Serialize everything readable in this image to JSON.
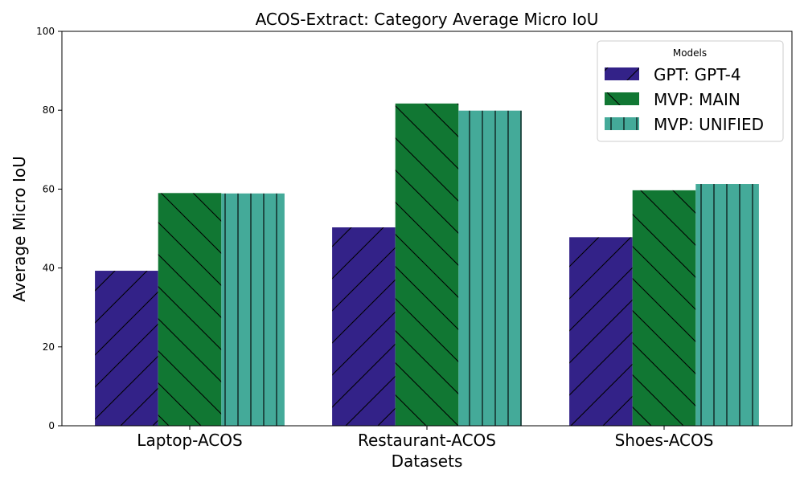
{
  "chart_data": {
    "type": "bar",
    "title": "ACOS-Extract: Category Average Micro IoU",
    "xlabel": "Datasets",
    "ylabel": "Average Micro IoU",
    "ylim": [
      0,
      100
    ],
    "yticks": [
      0,
      20,
      40,
      60,
      80,
      100
    ],
    "categories": [
      "Laptop-ACOS",
      "Restaurant-ACOS",
      "Shoes-ACOS"
    ],
    "legend": {
      "title": "Models",
      "placement": "top-right"
    },
    "grid": false,
    "series": [
      {
        "name": "GPT: GPT-4",
        "color": "#332288",
        "hatch": "forward-diagonal",
        "values": [
          39.3,
          50.3,
          47.8
        ]
      },
      {
        "name": "MVP: MAIN",
        "color": "#117733",
        "hatch": "back-diagonal",
        "values": [
          59.0,
          81.7,
          59.7
        ]
      },
      {
        "name": "MVP: UNIFIED",
        "color": "#44AA99",
        "hatch": "vertical",
        "values": [
          58.9,
          79.9,
          61.3
        ]
      }
    ]
  }
}
